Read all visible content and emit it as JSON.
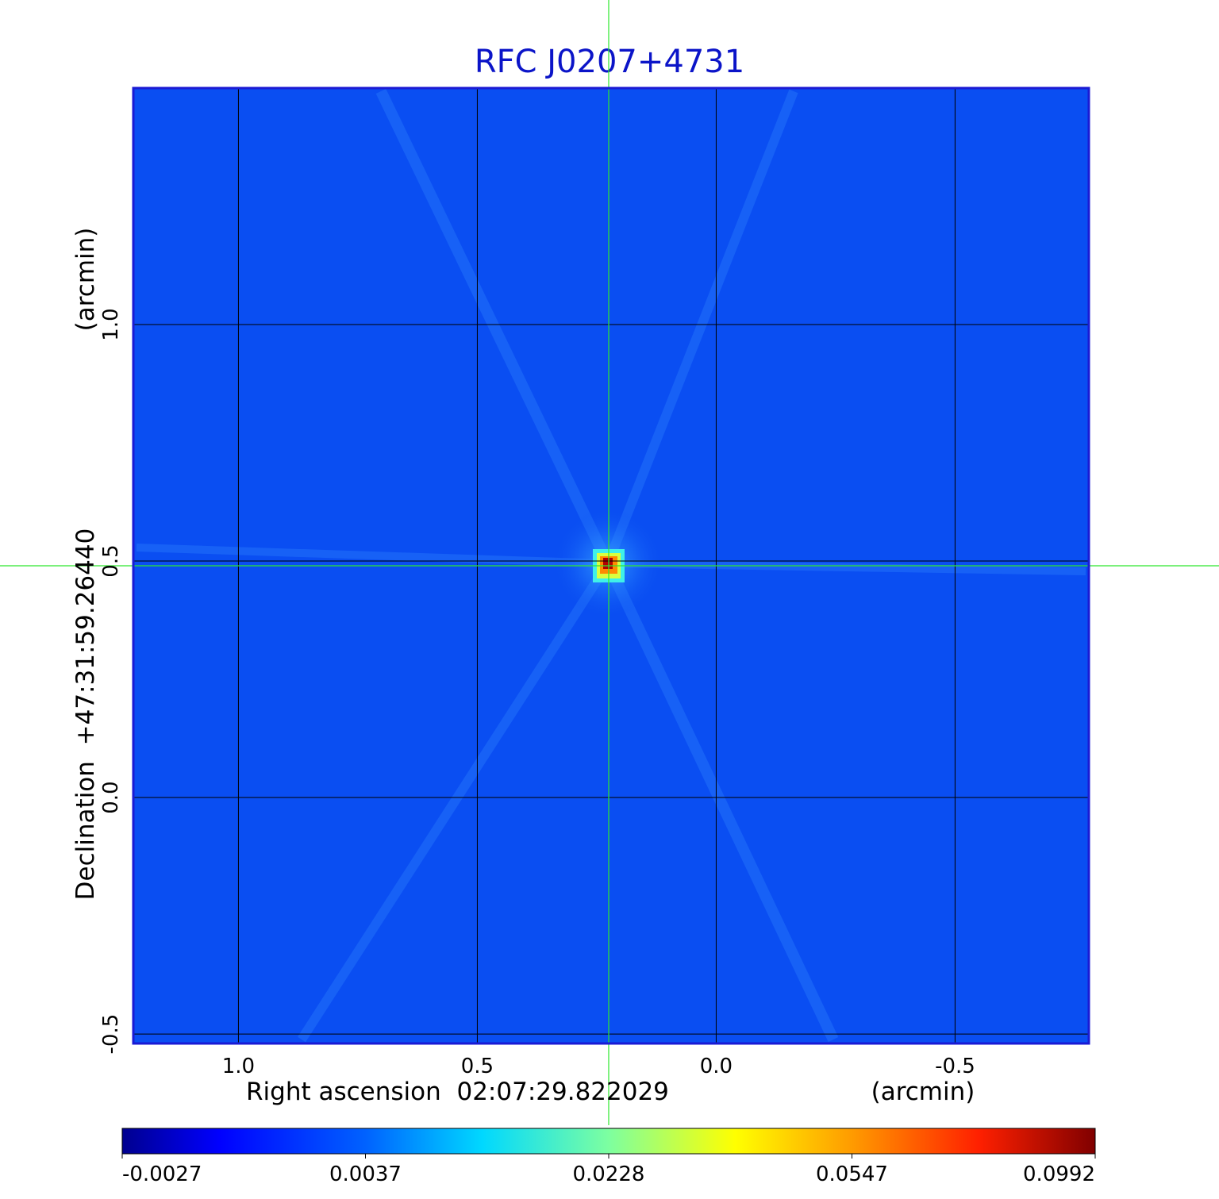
{
  "chart_data": {
    "type": "heatmap",
    "title": "RFC J0207+4731",
    "xlabel": "Right ascension  02:07:29.822029",
    "xunit": "(arcmin)",
    "ylabel": "Declination  +47:31:59.26440",
    "yunit": "(arcmin)",
    "x_ticks": [
      1.0,
      0.5,
      0.0,
      -0.5
    ],
    "x_tick_labels": [
      "1.0",
      "0.5",
      "0.0",
      "-0.5"
    ],
    "y_ticks": [
      1.0,
      0.5,
      0.0,
      -0.5
    ],
    "y_tick_labels": [
      "1.0",
      "0.5",
      "0.0",
      "-0.5"
    ],
    "xlim": [
      1.22,
      -0.78
    ],
    "ylim": [
      -0.52,
      1.5
    ],
    "grid": true,
    "crosshair": {
      "x": 0.225,
      "y": 0.49,
      "color": "#2ee82e"
    },
    "peak": {
      "x": 0.225,
      "y": 0.49,
      "value": 0.0992
    },
    "background_value": 0.001,
    "colorbar": {
      "scale": "nonlinear",
      "colormap": "jet",
      "tick_labels": [
        "-0.0027",
        "0.0037",
        "0.0228",
        "0.0547",
        "0.0992"
      ],
      "min": -0.0027,
      "max": 0.0992
    },
    "colors": {
      "background": "#0a4ef2",
      "frame": "#1a1ad4",
      "grid": "#000000",
      "crosshair": "#2ee82e",
      "title": "#0b14c8"
    }
  }
}
